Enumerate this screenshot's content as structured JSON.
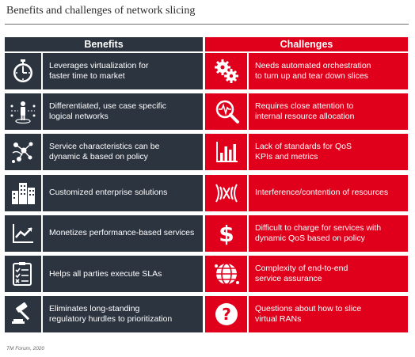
{
  "title": "Benefits and challenges of network slicing",
  "headers": {
    "benefits": "Benefits",
    "challenges": "Challenges"
  },
  "colors": {
    "benefits": "#2c3440",
    "challenges": "#e0001b",
    "text": "#ffffff"
  },
  "rows": [
    {
      "benefit": {
        "icon": "stopwatch-icon",
        "text": "Leverages virtualization for\nfaster time to market"
      },
      "challenge": {
        "icon": "gears-icon",
        "text": "Needs automated orchestration\nto turn up and tear down slices"
      }
    },
    {
      "benefit": {
        "icon": "person-network-icon",
        "text": "Differentiated, use case specific\nlogical networks"
      },
      "challenge": {
        "icon": "magnifier-pulse-icon",
        "text": "Requires close attention to\ninternal resource allocation"
      }
    },
    {
      "benefit": {
        "icon": "policy-network-icon",
        "text": "Service characteristics can be\ndynamic & based on policy"
      },
      "challenge": {
        "icon": "bar-chart-icon",
        "text": "Lack of standards for QoS\nKPIs and metrics"
      }
    },
    {
      "benefit": {
        "icon": "buildings-icon",
        "text": "Customized enterprise solutions"
      },
      "challenge": {
        "icon": "interference-icon",
        "text": "Interference/contention of resources"
      }
    },
    {
      "benefit": {
        "icon": "trend-chart-icon",
        "text": "Monetizes performance-based services"
      },
      "challenge": {
        "icon": "dollar-icon",
        "text": "Difficult to charge for services with\ndynamic QoS based on policy"
      }
    },
    {
      "benefit": {
        "icon": "checklist-icon",
        "text": "Helps all parties execute SLAs"
      },
      "challenge": {
        "icon": "globe-network-icon",
        "text": "Complexity of end-to-end\nservice assurance"
      }
    },
    {
      "benefit": {
        "icon": "gavel-icon",
        "text": "Eliminates long-standing\nregulatory hurdles to prioritization"
      },
      "challenge": {
        "icon": "question-icon",
        "text": "Questions about how to slice\nvirtual RANs"
      }
    }
  ],
  "source": "TM Forum, 2020"
}
